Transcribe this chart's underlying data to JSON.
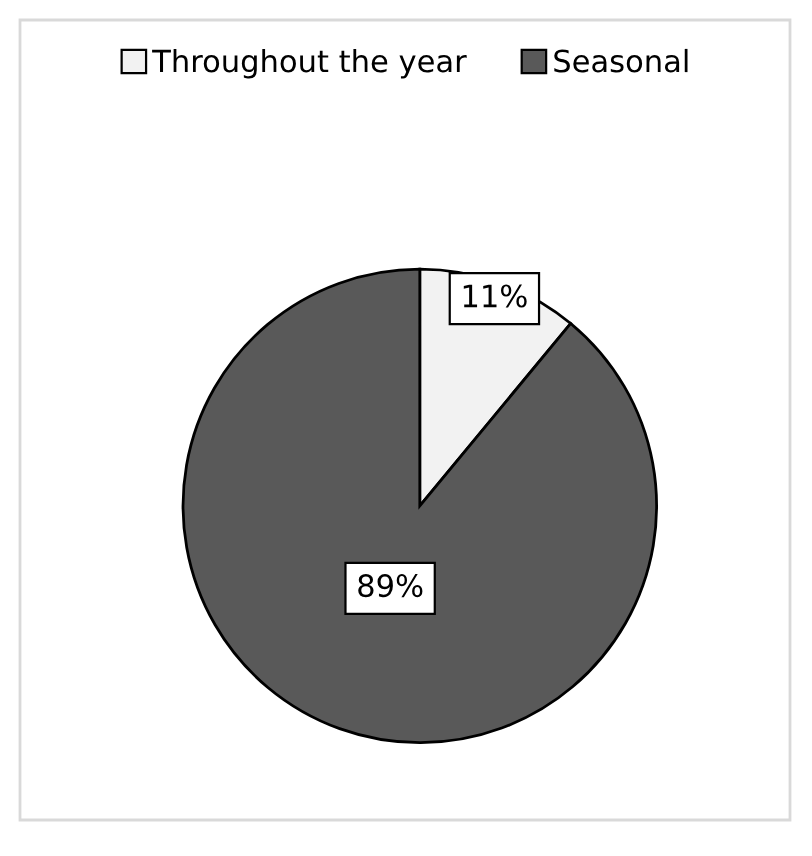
{
  "chart_data": {
    "type": "pie",
    "categories": [
      "Throughout the year",
      "Seasonal"
    ],
    "values": [
      11,
      89
    ],
    "colors": [
      "#f2f2f2",
      "#595959"
    ],
    "value_labels": [
      "11%",
      "89%"
    ],
    "legend": "top"
  }
}
